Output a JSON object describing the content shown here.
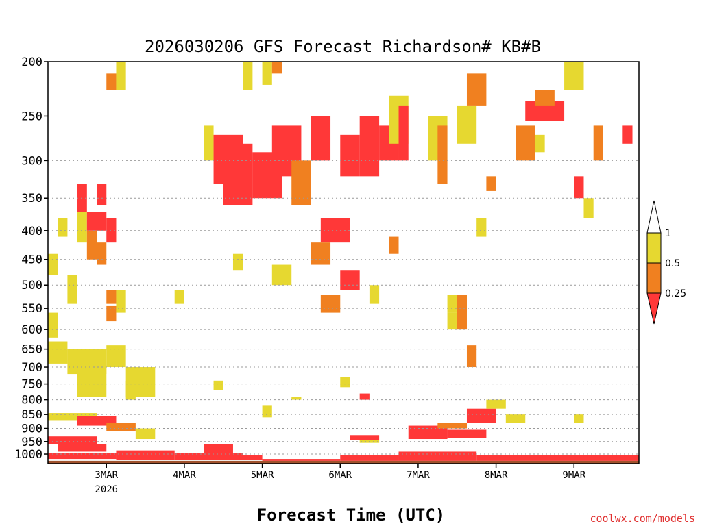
{
  "chart_data": {
    "type": "heatmap",
    "title": "2026030206 GFS Forecast Richardson# KB#B",
    "xlabel": "Forecast Time (UTC)",
    "ylabel": "",
    "credit": "coolwx.com/models",
    "y_scale": "log",
    "y_inverted": true,
    "y_range": [
      1040,
      200
    ],
    "y_ticks": [
      200,
      250,
      300,
      350,
      400,
      450,
      500,
      550,
      600,
      650,
      700,
      750,
      800,
      850,
      900,
      950,
      1000
    ],
    "y_tick_labels": [
      "200",
      "250",
      "300",
      "350",
      "400",
      "450",
      "500",
      "550",
      "600",
      "650",
      "700",
      "750",
      "800",
      "850",
      "900",
      "950",
      "1000"
    ],
    "x_range": [
      "2026-03-02T06:00",
      "2026-03-09T20:00"
    ],
    "x_ticks": [
      {
        "date": "2026-03-03T00:00",
        "label": "3MAR",
        "sublabel": "2026"
      },
      {
        "date": "2026-03-04T00:00",
        "label": "4MAR",
        "sublabel": ""
      },
      {
        "date": "2026-03-05T00:00",
        "label": "5MAR",
        "sublabel": ""
      },
      {
        "date": "2026-03-06T00:00",
        "label": "6MAR",
        "sublabel": ""
      },
      {
        "date": "2026-03-07T00:00",
        "label": "7MAR",
        "sublabel": ""
      },
      {
        "date": "2026-03-08T00:00",
        "label": "8MAR",
        "sublabel": ""
      },
      {
        "date": "2026-03-09T00:00",
        "label": "9MAR",
        "sublabel": ""
      }
    ],
    "grid": "horizontal-dotted",
    "legend_position": "right",
    "legend": [
      {
        "label": "1",
        "color": "#ffffff"
      },
      {
        "label": "0.5",
        "color": "#e6d830"
      },
      {
        "label": "0.25",
        "color": "#f08020"
      },
      {
        "label": "",
        "color": "#ff3838"
      }
    ],
    "colors": {
      "low": "#ff3838",
      "mid": "#f08020",
      "high": "#e6d830",
      "ground": "#a0522d"
    },
    "ground_pressure": 1028,
    "cells": [
      [
        "2026-03-02T06:00",
        "2026-03-02T12:00",
        630,
        690,
        "high"
      ],
      [
        "2026-03-02T12:00",
        "2026-03-03T00:00",
        650,
        720,
        "high"
      ],
      [
        "2026-03-03T00:00",
        "2026-03-03T06:00",
        640,
        700,
        "high"
      ],
      [
        "2026-03-02T15:00",
        "2026-03-03T00:00",
        700,
        790,
        "high"
      ],
      [
        "2026-03-03T06:00",
        "2026-03-03T15:00",
        700,
        790,
        "high"
      ],
      [
        "2026-03-03T06:00",
        "2026-03-03T09:00",
        740,
        800,
        "high"
      ],
      [
        "2026-03-02T06:00",
        "2026-03-02T09:00",
        560,
        620,
        "high"
      ],
      [
        "2026-03-02T12:00",
        "2026-03-02T15:00",
        480,
        540,
        "high"
      ],
      [
        "2026-03-02T06:00",
        "2026-03-02T09:00",
        440,
        480,
        "high"
      ],
      [
        "2026-03-02T15:00",
        "2026-03-02T18:00",
        370,
        420,
        "high"
      ],
      [
        "2026-03-02T18:00",
        "2026-03-03T00:00",
        370,
        400,
        "low"
      ],
      [
        "2026-03-02T18:00",
        "2026-03-02T21:00",
        400,
        450,
        "mid"
      ],
      [
        "2026-03-02T21:00",
        "2026-03-03T00:00",
        420,
        460,
        "mid"
      ],
      [
        "2026-03-03T00:00",
        "2026-03-03T03:00",
        380,
        420,
        "low"
      ],
      [
        "2026-03-03T00:00",
        "2026-03-03T03:00",
        510,
        540,
        "mid"
      ],
      [
        "2026-03-03T00:00",
        "2026-03-03T03:00",
        545,
        580,
        "mid"
      ],
      [
        "2026-03-03T03:00",
        "2026-03-03T06:00",
        510,
        560,
        "high"
      ],
      [
        "2026-03-03T00:00",
        "2026-03-03T03:00",
        210,
        225,
        "mid"
      ],
      [
        "2026-03-03T03:00",
        "2026-03-03T06:00",
        200,
        225,
        "high"
      ],
      [
        "2026-03-02T21:00",
        "2026-03-03T00:00",
        330,
        360,
        "low"
      ],
      [
        "2026-03-02T15:00",
        "2026-03-02T18:00",
        330,
        370,
        "low"
      ],
      [
        "2026-03-02T09:00",
        "2026-03-02T12:00",
        380,
        410,
        "high"
      ],
      [
        "2026-03-02T06:00",
        "2026-03-02T21:00",
        845,
        870,
        "high"
      ],
      [
        "2026-03-02T15:00",
        "2026-03-03T03:00",
        855,
        890,
        "low"
      ],
      [
        "2026-03-03T00:00",
        "2026-03-03T09:00",
        880,
        910,
        "mid"
      ],
      [
        "2026-03-03T09:00",
        "2026-03-03T15:00",
        900,
        940,
        "high"
      ],
      [
        "2026-03-02T06:00",
        "2026-03-02T21:00",
        930,
        960,
        "low"
      ],
      [
        "2026-03-02T09:00",
        "2026-03-03T00:00",
        960,
        990,
        "low"
      ],
      [
        "2026-03-02T06:00",
        "2026-03-03T03:00",
        995,
        1020,
        "low"
      ],
      [
        "2026-03-03T03:00",
        "2026-03-03T21:00",
        985,
        1025,
        "low"
      ],
      [
        "2026-03-03T21:00",
        "2026-03-04T18:00",
        995,
        1025,
        "low"
      ],
      [
        "2026-03-04T06:00",
        "2026-03-04T15:00",
        960,
        1000,
        "low"
      ],
      [
        "2026-03-04T15:00",
        "2026-03-05T00:00",
        1005,
        1025,
        "low"
      ],
      [
        "2026-03-05T00:00",
        "2026-03-06T00:00",
        1020,
        1028,
        "low"
      ],
      [
        "2026-03-06T00:00",
        "2026-03-06T18:00",
        1005,
        1028,
        "low"
      ],
      [
        "2026-03-06T18:00",
        "2026-03-07T18:00",
        990,
        1028,
        "low"
      ],
      [
        "2026-03-07T18:00",
        "2026-03-08T06:00",
        1005,
        1028,
        "low"
      ],
      [
        "2026-03-08T06:00",
        "2026-03-09T20:00",
        1005,
        1028,
        "low"
      ],
      [
        "2026-03-06T03:00",
        "2026-03-06T12:00",
        925,
        945,
        "low"
      ],
      [
        "2026-03-06T06:00",
        "2026-03-06T12:00",
        945,
        955,
        "high"
      ],
      [
        "2026-03-06T21:00",
        "2026-03-07T09:00",
        890,
        940,
        "low"
      ],
      [
        "2026-03-07T09:00",
        "2026-03-07T21:00",
        905,
        935,
        "low"
      ],
      [
        "2026-03-07T06:00",
        "2026-03-07T15:00",
        880,
        900,
        "mid"
      ],
      [
        "2026-03-07T15:00",
        "2026-03-08T00:00",
        830,
        880,
        "low"
      ],
      [
        "2026-03-07T21:00",
        "2026-03-08T03:00",
        800,
        830,
        "high"
      ],
      [
        "2026-03-08T03:00",
        "2026-03-08T09:00",
        850,
        880,
        "high"
      ],
      [
        "2026-03-09T00:00",
        "2026-03-09T03:00",
        850,
        880,
        "high"
      ],
      [
        "2026-03-07T15:00",
        "2026-03-07T18:00",
        640,
        700,
        "mid"
      ],
      [
        "2026-03-07T09:00",
        "2026-03-07T15:00",
        520,
        560,
        "high"
      ],
      [
        "2026-03-07T12:00",
        "2026-03-07T15:00",
        520,
        600,
        "mid"
      ],
      [
        "2026-03-07T09:00",
        "2026-03-07T12:00",
        560,
        600,
        "high"
      ],
      [
        "2026-03-06T00:00",
        "2026-03-06T03:00",
        730,
        760,
        "high"
      ],
      [
        "2026-03-06T06:00",
        "2026-03-06T09:00",
        780,
        800,
        "low"
      ],
      [
        "2026-03-05T09:00",
        "2026-03-05T12:00",
        790,
        800,
        "high"
      ],
      [
        "2026-03-04T09:00",
        "2026-03-04T12:00",
        740,
        770,
        "high"
      ],
      [
        "2026-03-05T00:00",
        "2026-03-05T03:00",
        820,
        860,
        "high"
      ],
      [
        "2026-03-04T06:00",
        "2026-03-04T09:00",
        260,
        300,
        "high"
      ],
      [
        "2026-03-04T09:00",
        "2026-03-04T18:00",
        270,
        330,
        "low"
      ],
      [
        "2026-03-04T12:00",
        "2026-03-04T21:00",
        280,
        360,
        "low"
      ],
      [
        "2026-03-04T21:00",
        "2026-03-05T06:00",
        290,
        350,
        "low"
      ],
      [
        "2026-03-05T03:00",
        "2026-03-05T06:00",
        260,
        300,
        "low"
      ],
      [
        "2026-03-05T06:00",
        "2026-03-05T12:00",
        260,
        320,
        "low"
      ],
      [
        "2026-03-05T09:00",
        "2026-03-05T15:00",
        300,
        360,
        "mid"
      ],
      [
        "2026-03-05T00:00",
        "2026-03-05T03:00",
        200,
        220,
        "high"
      ],
      [
        "2026-03-05T03:00",
        "2026-03-05T06:00",
        200,
        210,
        "mid"
      ],
      [
        "2026-03-04T18:00",
        "2026-03-04T21:00",
        200,
        225,
        "high"
      ],
      [
        "2026-03-05T15:00",
        "2026-03-05T21:00",
        250,
        300,
        "low"
      ],
      [
        "2026-03-06T00:00",
        "2026-03-06T06:00",
        270,
        320,
        "low"
      ],
      [
        "2026-03-06T06:00",
        "2026-03-06T12:00",
        250,
        320,
        "low"
      ],
      [
        "2026-03-06T12:00",
        "2026-03-06T18:00",
        260,
        300,
        "low"
      ],
      [
        "2026-03-06T15:00",
        "2026-03-06T21:00",
        230,
        280,
        "high"
      ],
      [
        "2026-03-06T18:00",
        "2026-03-06T21:00",
        240,
        300,
        "low"
      ],
      [
        "2026-03-07T03:00",
        "2026-03-07T09:00",
        250,
        300,
        "high"
      ],
      [
        "2026-03-07T06:00",
        "2026-03-07T09:00",
        260,
        330,
        "mid"
      ],
      [
        "2026-03-07T12:00",
        "2026-03-07T18:00",
        240,
        280,
        "high"
      ],
      [
        "2026-03-07T15:00",
        "2026-03-07T21:00",
        210,
        240,
        "mid"
      ],
      [
        "2026-03-07T21:00",
        "2026-03-08T00:00",
        320,
        340,
        "mid"
      ],
      [
        "2026-03-07T18:00",
        "2026-03-07T21:00",
        380,
        410,
        "high"
      ],
      [
        "2026-03-08T09:00",
        "2026-03-08T21:00",
        235,
        255,
        "low"
      ],
      [
        "2026-03-08T12:00",
        "2026-03-08T18:00",
        225,
        240,
        "mid"
      ],
      [
        "2026-03-08T06:00",
        "2026-03-08T12:00",
        260,
        300,
        "mid"
      ],
      [
        "2026-03-08T12:00",
        "2026-03-08T15:00",
        270,
        290,
        "high"
      ],
      [
        "2026-03-09T00:00",
        "2026-03-09T03:00",
        320,
        350,
        "low"
      ],
      [
        "2026-03-09T06:00",
        "2026-03-09T09:00",
        260,
        300,
        "mid"
      ],
      [
        "2026-03-09T15:00",
        "2026-03-09T18:00",
        260,
        280,
        "low"
      ],
      [
        "2026-03-09T03:00",
        "2026-03-09T06:00",
        350,
        380,
        "high"
      ],
      [
        "2026-03-08T21:00",
        "2026-03-09T03:00",
        200,
        225,
        "high"
      ],
      [
        "2026-03-05T18:00",
        "2026-03-06T03:00",
        380,
        420,
        "low"
      ],
      [
        "2026-03-05T15:00",
        "2026-03-05T21:00",
        420,
        460,
        "mid"
      ],
      [
        "2026-03-06T00:00",
        "2026-03-06T06:00",
        470,
        510,
        "low"
      ],
      [
        "2026-03-06T09:00",
        "2026-03-06T12:00",
        500,
        540,
        "high"
      ],
      [
        "2026-03-05T03:00",
        "2026-03-05T09:00",
        460,
        500,
        "high"
      ],
      [
        "2026-03-04T15:00",
        "2026-03-04T18:00",
        440,
        470,
        "high"
      ],
      [
        "2026-03-05T18:00",
        "2026-03-06T00:00",
        520,
        560,
        "mid"
      ],
      [
        "2026-03-06T15:00",
        "2026-03-06T18:00",
        410,
        440,
        "mid"
      ],
      [
        "2026-03-03T21:00",
        "2026-03-04T00:00",
        510,
        540,
        "high"
      ]
    ]
  }
}
